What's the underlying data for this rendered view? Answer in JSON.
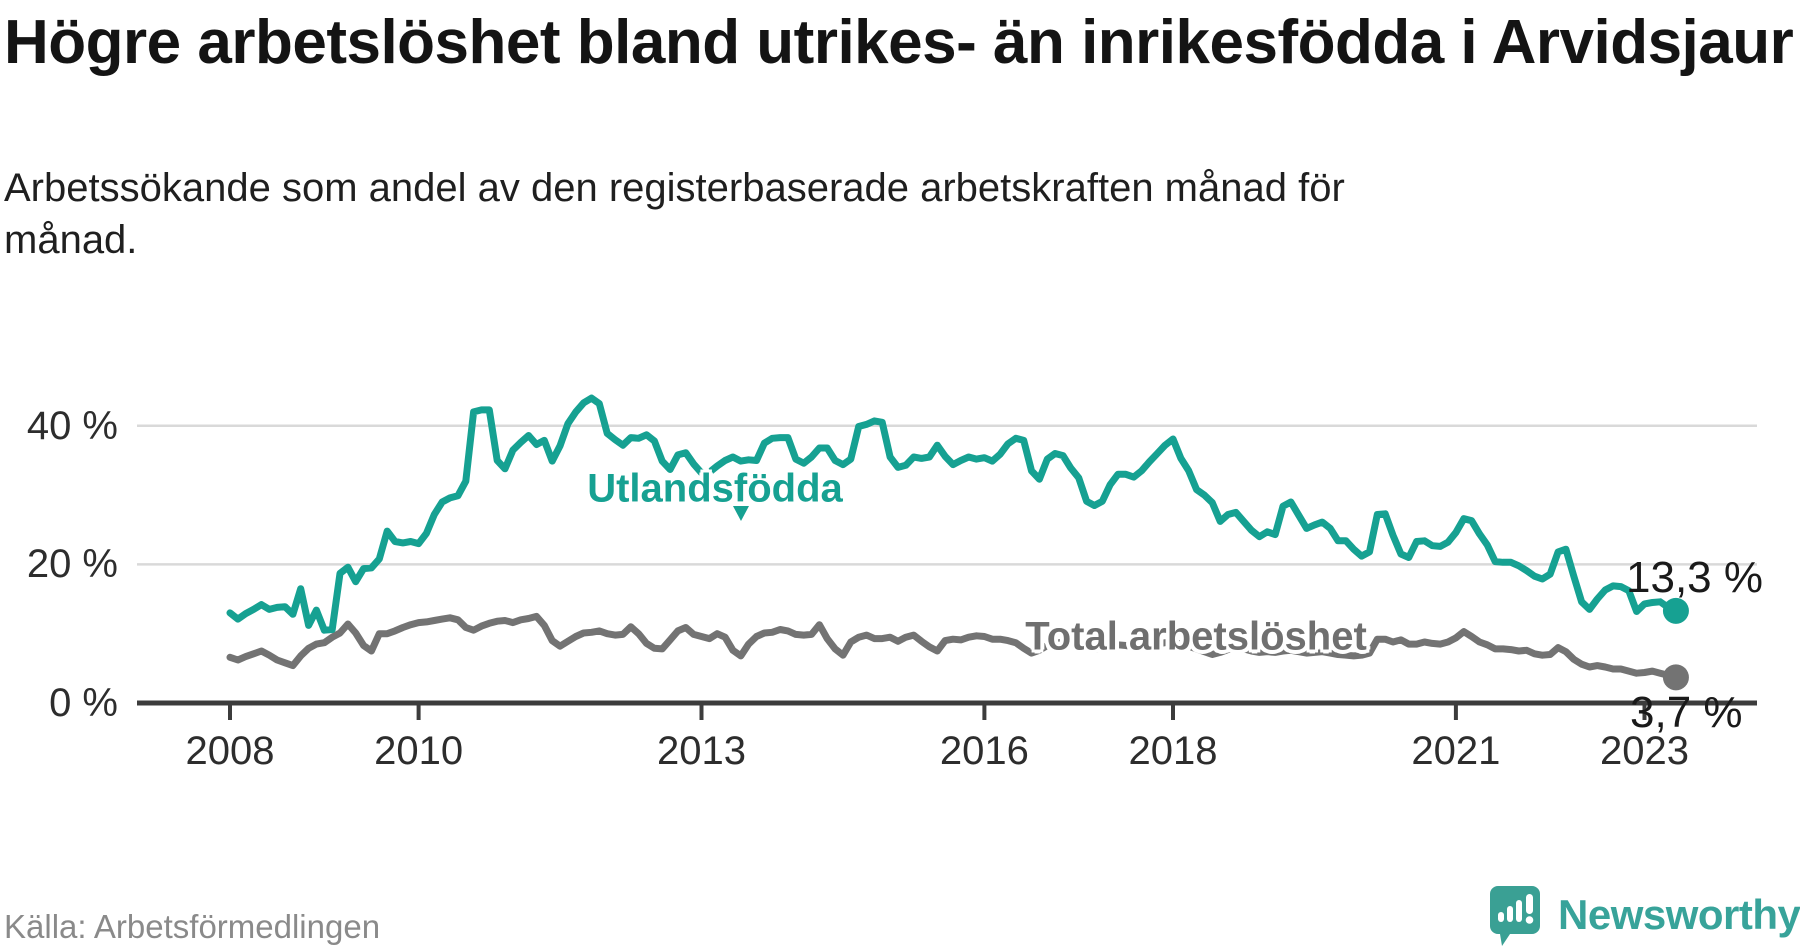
{
  "header": {
    "title": "Högre arbetslöshet bland utrikes- än inrikesfödda i Arvidsjaur",
    "subtitle": "Arbetssökande som andel av den registerbaserade arbetskraften månad för månad."
  },
  "chart_data": {
    "type": "line",
    "unit": "%",
    "x_start": "2008-01",
    "x_interval": "monthly",
    "x_end": "2023-05",
    "x_axis_ticks": [
      "2008",
      "2010",
      "2013",
      "2016",
      "2018",
      "2021",
      "2023"
    ],
    "y_axis_ticks": [
      "0 %",
      "20 %",
      "40 %"
    ],
    "ylim": [
      0,
      46
    ],
    "grid": "horizontal-light",
    "legend": "inline-labels",
    "series": [
      {
        "name": "Utlandsfödda",
        "color": "#16a192",
        "end_label": "13,3 %",
        "end_value": 13.3,
        "values": [
          13.0,
          12.1,
          12.9,
          13.5,
          14.2,
          13.5,
          13.8,
          13.9,
          12.8,
          16.5,
          11.2,
          13.4,
          10.5,
          10.6,
          18.7,
          19.6,
          17.5,
          19.4,
          19.5,
          20.8,
          24.8,
          23.3,
          23.1,
          23.3,
          23.0,
          24.5,
          27.2,
          29.0,
          29.6,
          29.9,
          32.0,
          42.0,
          42.3,
          42.3,
          35.0,
          33.8,
          36.5,
          37.6,
          38.6,
          37.3,
          37.9,
          34.9,
          37.1,
          40.3,
          42.0,
          43.3,
          44.0,
          43.2,
          38.9,
          38.0,
          37.2,
          38.3,
          38.2,
          38.7,
          37.8,
          34.9,
          33.7,
          35.8,
          36.1,
          34.5,
          33.2,
          33.3,
          34.2,
          35.0,
          35.5,
          34.9,
          35.1,
          35.0,
          37.5,
          38.2,
          38.3,
          38.3,
          35.2,
          34.6,
          35.5,
          36.8,
          36.8,
          35.0,
          34.4,
          35.2,
          39.9,
          40.2,
          40.7,
          40.5,
          35.5,
          34.0,
          34.3,
          35.5,
          35.3,
          35.5,
          37.2,
          35.6,
          34.4,
          35.0,
          35.5,
          35.2,
          35.4,
          34.9,
          35.9,
          37.4,
          38.2,
          37.9,
          33.5,
          32.3,
          35.2,
          36.0,
          35.7,
          33.9,
          32.5,
          29.1,
          28.5,
          29.1,
          31.5,
          33.0,
          33.0,
          32.6,
          33.5,
          34.8,
          36.0,
          37.2,
          38.1,
          35.3,
          33.5,
          30.8,
          30.0,
          28.9,
          26.2,
          27.2,
          27.5,
          26.2,
          24.9,
          24.0,
          24.7,
          24.3,
          28.4,
          29.0,
          27.1,
          25.2,
          25.7,
          26.1,
          25.2,
          23.4,
          23.4,
          22.2,
          21.2,
          21.8,
          27.2,
          27.3,
          24.2,
          21.5,
          21.0,
          23.3,
          23.4,
          22.7,
          22.6,
          23.2,
          24.6,
          26.6,
          26.3,
          24.4,
          22.8,
          20.4,
          20.3,
          20.3,
          19.8,
          19.1,
          18.3,
          17.9,
          18.6,
          21.8,
          22.2,
          18.3,
          14.6,
          13.5,
          15.0,
          16.3,
          16.9,
          16.8,
          16.2,
          13.2,
          14.3,
          14.5,
          14.6,
          13.8,
          13.3
        ]
      },
      {
        "name": "Total arbetslöshet",
        "color": "#737373",
        "end_label": "3,7 %",
        "end_value": 3.7,
        "values": [
          6.6,
          6.2,
          6.7,
          7.1,
          7.5,
          6.9,
          6.2,
          5.8,
          5.4,
          6.8,
          7.9,
          8.5,
          8.7,
          9.5,
          10.1,
          11.4,
          10.1,
          8.3,
          7.5,
          10.0,
          10.0,
          10.4,
          10.9,
          11.3,
          11.6,
          11.7,
          11.9,
          12.1,
          12.3,
          12.0,
          10.9,
          10.5,
          11.1,
          11.5,
          11.8,
          11.9,
          11.6,
          12.0,
          12.2,
          12.5,
          11.2,
          9.0,
          8.2,
          8.9,
          9.6,
          10.1,
          10.2,
          10.4,
          10.0,
          9.8,
          9.9,
          11.0,
          10.0,
          8.6,
          7.9,
          7.8,
          9.1,
          10.4,
          10.9,
          9.9,
          9.6,
          9.3,
          10.0,
          9.5,
          7.6,
          6.8,
          8.5,
          9.6,
          10.1,
          10.2,
          10.6,
          10.4,
          9.9,
          9.8,
          9.9,
          11.3,
          9.3,
          7.8,
          6.9,
          8.8,
          9.5,
          9.8,
          9.3,
          9.3,
          9.5,
          8.9,
          9.5,
          9.8,
          8.9,
          8.1,
          7.5,
          9.0,
          9.2,
          9.1,
          9.5,
          9.7,
          9.6,
          9.2,
          9.2,
          9.0,
          8.7,
          7.9,
          7.2,
          7.6,
          8.3,
          8.6,
          8.8,
          8.6,
          8.4,
          8.0,
          7.7,
          7.9,
          8.2,
          8.4,
          8.3,
          8.1,
          8.2,
          8.4,
          8.5,
          8.7,
          8.8,
          8.5,
          8.2,
          7.8,
          7.4,
          7.0,
          7.3,
          7.7,
          8.0,
          7.8,
          7.5,
          7.3,
          7.4,
          7.3,
          7.5,
          7.6,
          7.4,
          7.2,
          7.3,
          7.4,
          7.2,
          7.0,
          6.9,
          6.8,
          6.9,
          7.2,
          9.2,
          9.2,
          8.8,
          9.1,
          8.5,
          8.5,
          8.8,
          8.6,
          8.5,
          8.8,
          9.4,
          10.3,
          9.6,
          8.8,
          8.4,
          7.8,
          7.8,
          7.7,
          7.5,
          7.6,
          7.1,
          6.9,
          7.0,
          8.0,
          7.4,
          6.3,
          5.6,
          5.2,
          5.4,
          5.2,
          4.9,
          4.9,
          4.6,
          4.3,
          4.4,
          4.6,
          4.3,
          4.0,
          3.7
        ]
      }
    ]
  },
  "footer": {
    "source": "Källa: Arbetsförmedlingen",
    "brand": "Newsworthy"
  },
  "colors": {
    "background": "#ffffff",
    "title": "#141414",
    "teal_line": "#16a192",
    "gray_line": "#737373",
    "gridline": "#d9d9d9",
    "axis": "#3c3c3c",
    "axis_text": "#2d2d2d",
    "source_text": "#8a8a8a",
    "logo_teal": "#38a39a"
  }
}
